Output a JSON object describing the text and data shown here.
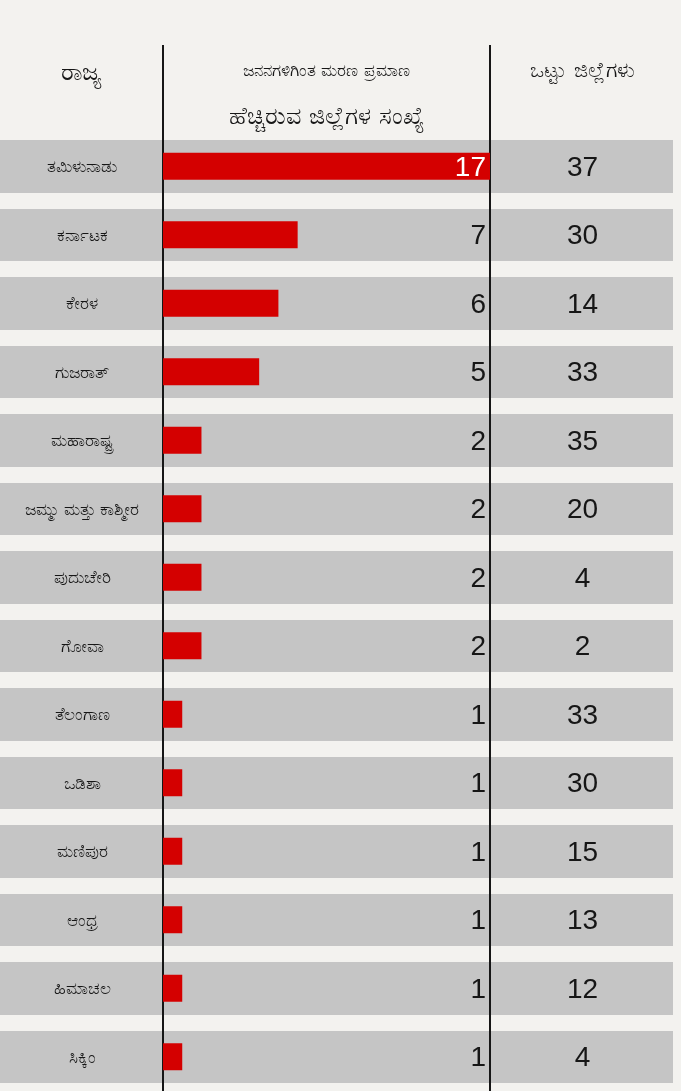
{
  "chart_data": {
    "type": "bar",
    "orientation": "horizontal",
    "ylabel": "ರಾಜ್ಯ",
    "xlabel": "ಜನನಗಳಿಗಿಂತ ಮರಣ ಪ್ರಮಾಣ\nಹೆಚ್ಚಿರುವ ಜಿಲ್ಲೆಗಳ ಸಂಖ್ಯೆ",
    "y2label": "ಒಟ್ಟು ಜಿಲ್ಲೆಗಳು",
    "categories": [
      "ತಮಿಳುನಾಡು",
      "ಕರ್ನಾಟಕ",
      "ಕೇರಳ",
      "ಗುಜರಾತ್",
      "ಮಹಾರಾಷ್ಟ್ರ",
      "ಜಮ್ಮು ಮತ್ತು ಕಾಶ್ಮೀರ",
      "ಪುದುಚೇರಿ",
      "ಗೋವಾ",
      "ತೆಲಂಗಾಣ",
      "ಒಡಿಶಾ",
      "ಮಣಿಪುರ",
      "ಆಂಧ್ರ",
      "ಹಿಮಾಚಲ",
      "ಸಿಕ್ಕಿಂ"
    ],
    "y2_categories": [
      "37",
      "30",
      "14",
      "33",
      "35",
      "20",
      "4",
      "2",
      "33",
      "30",
      "15",
      "13",
      "12",
      "4"
    ],
    "values": [
      17,
      7,
      6,
      5,
      2,
      2,
      2,
      2,
      1,
      1,
      1,
      1,
      1,
      1
    ],
    "color": "#d40000",
    "data_labels": true,
    "tick_labels": "y"
  }
}
